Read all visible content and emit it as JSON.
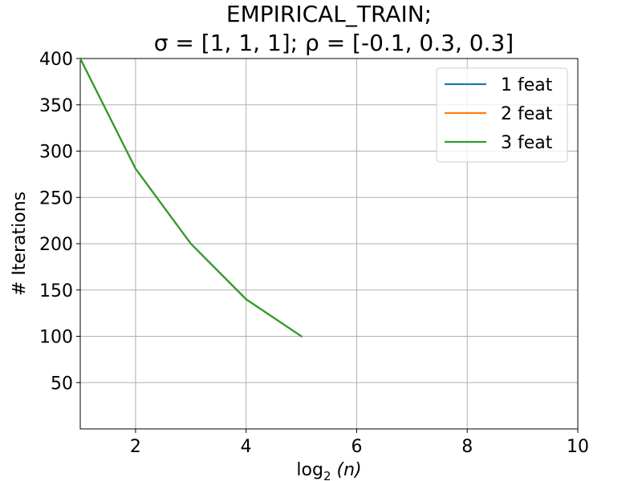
{
  "chart_data": {
    "type": "line",
    "title_line1": "EMPIRICAL_TRAIN;",
    "title_line2": "σ = [1, 1, 1];  ρ = [-0.1, 0.3, 0.3]",
    "xlabel_prefix": "log",
    "xlabel_sub": "2",
    "xlabel_arg": "(n)",
    "ylabel": "# Iterations",
    "xlim": [
      1,
      10
    ],
    "ylim": [
      0,
      400
    ],
    "xticks": [
      2,
      4,
      6,
      8,
      10
    ],
    "yticks": [
      50,
      100,
      150,
      200,
      250,
      300,
      350,
      400
    ],
    "grid": true,
    "legend_position": "top-right",
    "series": [
      {
        "name": "1 feat",
        "color": "#1f77b4",
        "x": [
          1,
          2,
          3,
          4,
          5
        ],
        "y": [
          400,
          281,
          200,
          140,
          100
        ]
      },
      {
        "name": "2 feat",
        "color": "#ff7f0e",
        "x": [
          1,
          2,
          3,
          4,
          5
        ],
        "y": [
          400,
          281,
          200,
          140,
          100
        ]
      },
      {
        "name": "3 feat",
        "color": "#2ca02c",
        "x": [
          1,
          2,
          3,
          4,
          5
        ],
        "y": [
          400,
          281,
          200,
          140,
          100
        ]
      }
    ]
  }
}
